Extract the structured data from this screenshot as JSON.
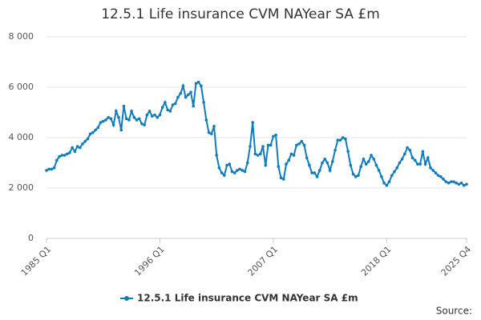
{
  "chart_data": {
    "type": "line",
    "title": "12.5.1 Life insurance CVM NAYear SA £m",
    "source": "Source:",
    "legend": "bottom",
    "grid": true,
    "categories": [
      "1985 Q1",
      null,
      null,
      null,
      null,
      null,
      null,
      null,
      null,
      null,
      null,
      null,
      null,
      null,
      null,
      null,
      null,
      null,
      null,
      null,
      null,
      null,
      null,
      null,
      null,
      null,
      null,
      null,
      null,
      null,
      null,
      null,
      null,
      null,
      null,
      null,
      null,
      null,
      null,
      null,
      null,
      null,
      null,
      null,
      "1996 Q1",
      null,
      null,
      null,
      null,
      null,
      null,
      null,
      null,
      null,
      null,
      null,
      null,
      null,
      null,
      null,
      null,
      null,
      null,
      null,
      null,
      null,
      null,
      null,
      null,
      null,
      null,
      null,
      null,
      null,
      null,
      null,
      null,
      null,
      null,
      null,
      null,
      null,
      null,
      null,
      null,
      null,
      null,
      null,
      "2007 Q1",
      null,
      null,
      null,
      null,
      null,
      null,
      null,
      null,
      null,
      null,
      null,
      null,
      null,
      null,
      null,
      null,
      null,
      null,
      null,
      null,
      null,
      null,
      null,
      null,
      null,
      null,
      null,
      null,
      null,
      null,
      null,
      null,
      null,
      null,
      null,
      null,
      null,
      null,
      null,
      null,
      null,
      null,
      null,
      "2018 Q1",
      null,
      null,
      null,
      null,
      null,
      null,
      null,
      null,
      null,
      null,
      null,
      null,
      null,
      null,
      null,
      null,
      null,
      null,
      null,
      null,
      null,
      null,
      null,
      null,
      null,
      null,
      null,
      null,
      null,
      null,
      "2025 Q4"
    ],
    "series": [
      {
        "name": "12.5.1 Life insurance CVM NAYear SA £m",
        "color": "#0f7dbd",
        "values": [
          2700,
          2750,
          2750,
          2800,
          3100,
          3250,
          3300,
          3300,
          3350,
          3400,
          3600,
          3450,
          3650,
          3600,
          3750,
          3850,
          3950,
          4150,
          4200,
          4300,
          4400,
          4600,
          4650,
          4700,
          4800,
          4750,
          4500,
          5050,
          4800,
          4300,
          5250,
          4750,
          4700,
          5050,
          4800,
          4700,
          4750,
          4550,
          4500,
          4900,
          5050,
          4850,
          4900,
          4800,
          4900,
          5200,
          5400,
          5100,
          5050,
          5300,
          5350,
          5600,
          5750,
          6050,
          5600,
          5700,
          5800,
          5250,
          6150,
          6200,
          6050,
          5400,
          4700,
          4200,
          4150,
          4450,
          3300,
          2800,
          2600,
          2500,
          2900,
          2950,
          2650,
          2600,
          2700,
          2750,
          2700,
          2650,
          3000,
          3650,
          4600,
          3350,
          3300,
          3350,
          3650,
          2900,
          3700,
          3700,
          4050,
          4100,
          2850,
          2400,
          2350,
          2950,
          3100,
          3350,
          3300,
          3700,
          3750,
          3850,
          3700,
          3200,
          2900,
          2600,
          2600,
          2450,
          2700,
          3000,
          3150,
          3000,
          2700,
          3050,
          3500,
          3900,
          3900,
          4000,
          3950,
          3450,
          2900,
          2550,
          2450,
          2500,
          2850,
          3150,
          2950,
          3050,
          3300,
          3150,
          2900,
          2700,
          2450,
          2200,
          2100,
          2250,
          2500,
          2650,
          2800,
          3000,
          3150,
          3350,
          3600,
          3500,
          3200,
          3100,
          2950,
          2950,
          3450,
          2950,
          3200,
          2800,
          2700,
          2600,
          2500,
          2450,
          2350,
          2250,
          2200,
          2250,
          2250,
          2200,
          2150,
          2200,
          2100,
          2150
        ]
      }
    ],
    "ylim": [
      0,
      8000
    ],
    "yticks": [
      0,
      {
        "value": 2000,
        "label": "2 000"
      },
      {
        "value": 4000,
        "label": "4 000"
      },
      {
        "value": 6000,
        "label": "6 000"
      },
      {
        "value": 8000,
        "label": "8 000"
      }
    ]
  }
}
